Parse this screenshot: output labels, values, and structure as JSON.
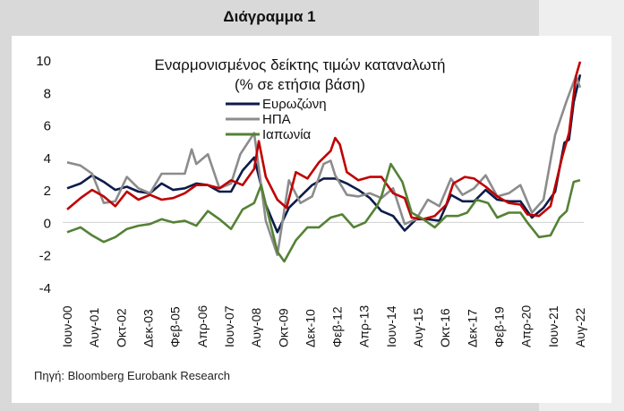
{
  "heading": "Διάγραμμα 1",
  "source": "Πηγή: Bloomberg Eurobank Research",
  "chart_data": {
    "type": "line",
    "title": [
      "Εναρμονισμένος δείκτης τιμών καταναλωτή",
      "(% σε ετήσια βάση)"
    ],
    "xlabel": "",
    "ylabel": "",
    "ylim": [
      -4,
      10
    ],
    "yticks": [
      10,
      8,
      6,
      4,
      2,
      0,
      -2,
      -4
    ],
    "xrange": [
      2000.42,
      2022.58
    ],
    "xtick_labels": [
      "Ιουν-00",
      "Αυγ-01",
      "Οκτ-02",
      "Δεκ-03",
      "Φεβ-05",
      "Απρ-06",
      "Ιουν-07",
      "Αυγ-08",
      "Οκτ-09",
      "Δεκ-10",
      "Φεβ-12",
      "Απρ-13",
      "Ιουν-14",
      "Αυγ-15",
      "Οκτ-16",
      "Δεκ-17",
      "Φεβ-19",
      "Απρ-20",
      "Ιουν-21",
      "Αυγ-22"
    ],
    "legend_position": "top-center",
    "grid": false,
    "series": [
      {
        "name": "Ευρωζώνη",
        "color": "#0d1b4a",
        "legend": true,
        "x": [
          2000.42,
          2001,
          2001.5,
          2002,
          2002.5,
          2003,
          2003.5,
          2004,
          2004.5,
          2005,
          2005.5,
          2006,
          2006.5,
          2007,
          2007.5,
          2008,
          2008.5,
          2009,
          2009.5,
          2010,
          2010.5,
          2011,
          2011.5,
          2012,
          2012.5,
          2013,
          2013.5,
          2014,
          2014.5,
          2015,
          2015.5,
          2016,
          2016.5,
          2017,
          2017.5,
          2018,
          2018.5,
          2019,
          2019.5,
          2020,
          2020.5,
          2021,
          2021.5,
          2021.9,
          2022.1,
          2022.3,
          2022.58
        ],
        "y": [
          2.1,
          2.4,
          2.9,
          2.5,
          2.0,
          2.2,
          1.9,
          1.8,
          2.4,
          2.0,
          2.1,
          2.4,
          2.3,
          1.9,
          1.9,
          3.2,
          4.0,
          1.1,
          -0.6,
          0.9,
          1.6,
          2.3,
          2.7,
          2.7,
          2.4,
          2.0,
          1.5,
          0.7,
          0.4,
          -0.5,
          0.2,
          0.2,
          0.1,
          1.7,
          1.3,
          1.3,
          2.0,
          1.4,
          1.3,
          1.3,
          0.3,
          0.9,
          1.9,
          4.9,
          5.1,
          7.4,
          9.1
        ]
      },
      {
        "name": "ΗΠΑ",
        "color": "#8c8c8c",
        "legend": true,
        "x": [
          2000.42,
          2001,
          2001.5,
          2002,
          2002.5,
          2003,
          2003.5,
          2004,
          2004.5,
          2005,
          2005.5,
          2005.8,
          2006,
          2006.5,
          2007,
          2007.5,
          2007.9,
          2008.5,
          2009,
          2009.5,
          2010,
          2010.5,
          2011,
          2011.5,
          2011.8,
          2012,
          2012.5,
          2013,
          2013.5,
          2014,
          2014.5,
          2015,
          2015.5,
          2016,
          2016.5,
          2017,
          2017.5,
          2018,
          2018.5,
          2019,
          2019.5,
          2020,
          2020.5,
          2021,
          2021.5,
          2022,
          2022.4,
          2022.58
        ],
        "y": [
          3.7,
          3.5,
          3.0,
          1.2,
          1.3,
          2.8,
          2.1,
          1.8,
          3.0,
          3.0,
          3.0,
          4.5,
          3.6,
          4.2,
          2.1,
          2.4,
          4.2,
          5.5,
          0.1,
          -2.0,
          2.6,
          1.2,
          1.6,
          3.6,
          3.8,
          2.9,
          1.7,
          1.6,
          1.8,
          1.5,
          2.1,
          -0.1,
          0.2,
          1.4,
          1.0,
          2.7,
          1.7,
          2.1,
          2.9,
          1.6,
          1.8,
          2.3,
          0.6,
          1.4,
          5.4,
          7.5,
          9.0,
          8.3
        ]
      },
      {
        "name": "",
        "color": "#c00000",
        "legend": false,
        "x": [
          2000.42,
          2001,
          2001.5,
          2002,
          2002.5,
          2003,
          2003.5,
          2004,
          2004.5,
          2005,
          2005.5,
          2006,
          2006.5,
          2007,
          2007.5,
          2008,
          2008.5,
          2008.7,
          2009,
          2009.5,
          2009.9,
          2010.3,
          2010.8,
          2011.3,
          2011.8,
          2012,
          2012.2,
          2012.5,
          2013,
          2013.5,
          2014,
          2014.5,
          2015,
          2015.3,
          2015.8,
          2016.3,
          2016.8,
          2017.1,
          2017.6,
          2018,
          2018.5,
          2019,
          2019.5,
          2020,
          2020.3,
          2020.8,
          2021.3,
          2021.8,
          2022.1,
          2022.4,
          2022.58
        ],
        "y": [
          0.8,
          1.5,
          2.0,
          1.6,
          1.0,
          1.9,
          1.4,
          1.7,
          1.4,
          1.5,
          1.8,
          2.3,
          2.3,
          2.1,
          2.6,
          2.3,
          3.3,
          5.0,
          2.8,
          1.4,
          0.9,
          3.1,
          2.7,
          3.7,
          4.4,
          5.2,
          4.8,
          3.1,
          2.6,
          2.8,
          2.8,
          1.8,
          1.5,
          0.3,
          0.2,
          0.4,
          1.1,
          2.4,
          2.8,
          2.7,
          2.2,
          1.6,
          1.2,
          1.1,
          0.5,
          0.4,
          1.0,
          4.0,
          5.5,
          9.0,
          9.9
        ]
      },
      {
        "name": "Ιαπωνία",
        "color": "#548235",
        "legend": true,
        "x": [
          2000.42,
          2001,
          2001.5,
          2002,
          2002.5,
          2003,
          2003.5,
          2004,
          2004.5,
          2005,
          2005.5,
          2006,
          2006.5,
          2007,
          2007.5,
          2008,
          2008.5,
          2008.8,
          2009,
          2009.5,
          2009.8,
          2010.3,
          2010.8,
          2011.3,
          2011.8,
          2012.3,
          2012.8,
          2013.3,
          2013.8,
          2014,
          2014.4,
          2014.9,
          2015.3,
          2015.8,
          2016.3,
          2016.8,
          2017.3,
          2017.7,
          2018.1,
          2018.6,
          2019,
          2019.5,
          2020,
          2020.3,
          2020.8,
          2021.3,
          2021.7,
          2022,
          2022.3,
          2022.58
        ],
        "y": [
          -0.6,
          -0.3,
          -0.8,
          -1.2,
          -0.9,
          -0.4,
          -0.2,
          -0.1,
          0.2,
          0.0,
          0.1,
          -0.2,
          0.7,
          0.2,
          -0.4,
          0.8,
          1.2,
          2.3,
          1.1,
          -1.8,
          -2.4,
          -1.1,
          -0.3,
          -0.3,
          0.3,
          0.5,
          -0.3,
          0.0,
          1.0,
          1.6,
          3.6,
          2.5,
          0.6,
          0.2,
          -0.3,
          0.4,
          0.4,
          0.6,
          1.4,
          1.2,
          0.3,
          0.6,
          0.6,
          0.0,
          -0.9,
          -0.8,
          0.3,
          0.7,
          2.5,
          2.6
        ]
      }
    ]
  }
}
